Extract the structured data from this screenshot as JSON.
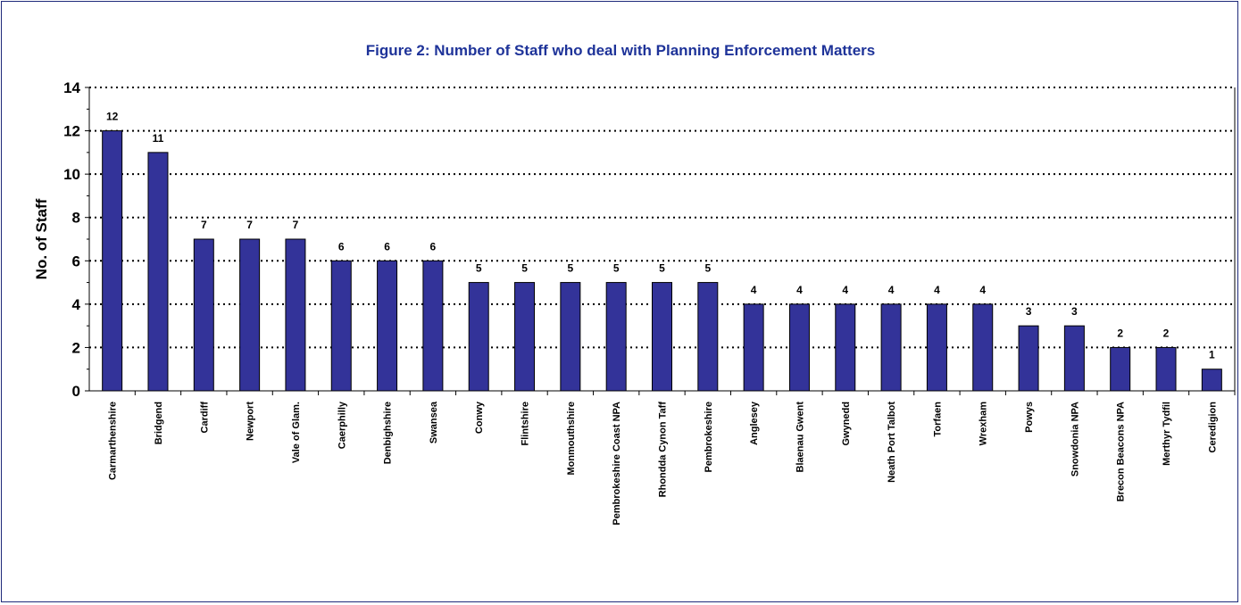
{
  "chart_data": {
    "type": "bar",
    "title": "Figure 2: Number of Staff who deal with Planning Enforcement Matters",
    "xlabel": "",
    "ylabel": "No. of Staff",
    "ylim": [
      0,
      14
    ],
    "yticks": [
      0,
      2,
      4,
      6,
      8,
      10,
      12,
      14
    ],
    "grid": "horizontal dotted",
    "bar_color": "#333399",
    "title_color": "#1e3399",
    "categories": [
      "Carmarthenshire",
      "Bridgend",
      "Cardiff",
      "Newport",
      "Vale of Glam.",
      "Caerphilly",
      "Denbighshire",
      "Swansea",
      "Conwy",
      "Flintshire",
      "Monmouthshire",
      "Pembrokeshire Coast NPA",
      "Rhondda Cynon Taff",
      "Pembrokeshire",
      "Anglesey",
      "Blaenau Gwent",
      "Gwynedd",
      "Neath Port Talbot",
      "Torfaen",
      "Wrexham",
      "Powys",
      "Snowdonia NPA",
      "Brecon Beacons NPA",
      "Merthyr Tydfil",
      "Ceredigion"
    ],
    "values": [
      12,
      11,
      7,
      7,
      7,
      6,
      6,
      6,
      5,
      5,
      5,
      5,
      5,
      5,
      4,
      4,
      4,
      4,
      4,
      4,
      3,
      3,
      2,
      2,
      1
    ]
  }
}
